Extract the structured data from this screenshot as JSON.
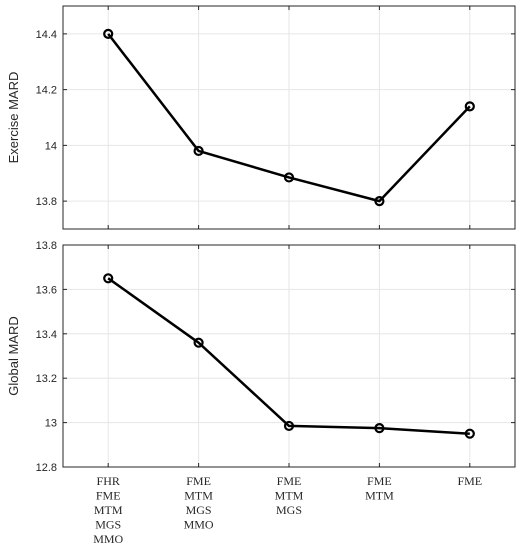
{
  "chart_data": [
    {
      "type": "line",
      "title": "",
      "xlabel": "",
      "ylabel": "Exercise MARD",
      "ylim": [
        13.7,
        14.5
      ],
      "yticks": [
        "13.8",
        "14",
        "14.2",
        "14.4"
      ],
      "grid": true,
      "series": [
        {
          "values": [
            14.4,
            13.98,
            13.885,
            13.8,
            14.14
          ]
        }
      ]
    },
    {
      "type": "line",
      "title": "",
      "xlabel": "",
      "ylabel": "Global MARD",
      "ylim": [
        12.8,
        13.8
      ],
      "yticks": [
        "12.8",
        "13",
        "13.2",
        "13.4",
        "13.6",
        "13.8"
      ],
      "grid": true,
      "categories": [
        [
          "FHR",
          "FME",
          "MTM",
          "MGS",
          "MMO"
        ],
        [
          "FME",
          "MTM",
          "MGS",
          "MMO"
        ],
        [
          "FME",
          "MTM",
          "MGS"
        ],
        [
          "FME",
          "MTM"
        ],
        [
          "FME"
        ]
      ],
      "series": [
        {
          "values": [
            13.65,
            13.36,
            12.985,
            12.975,
            12.95
          ]
        }
      ]
    }
  ],
  "style": {
    "line_color": "#000000",
    "grid_color": "#e6e6e6",
    "axis_color": "#262626",
    "marker": "open-circle"
  }
}
